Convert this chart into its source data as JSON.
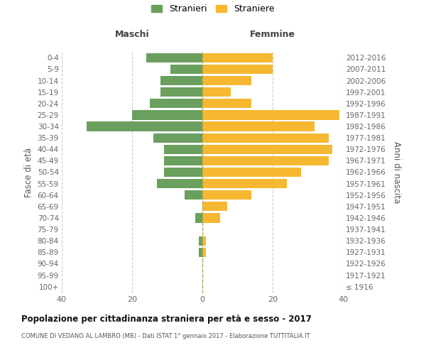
{
  "age_groups": [
    "100+",
    "95-99",
    "90-94",
    "85-89",
    "80-84",
    "75-79",
    "70-74",
    "65-69",
    "60-64",
    "55-59",
    "50-54",
    "45-49",
    "40-44",
    "35-39",
    "30-34",
    "25-29",
    "20-24",
    "15-19",
    "10-14",
    "5-9",
    "0-4"
  ],
  "birth_years": [
    "≤ 1916",
    "1917-1921",
    "1922-1926",
    "1927-1931",
    "1932-1936",
    "1937-1941",
    "1942-1946",
    "1947-1951",
    "1952-1956",
    "1957-1961",
    "1962-1966",
    "1967-1971",
    "1972-1976",
    "1977-1981",
    "1982-1986",
    "1987-1991",
    "1992-1996",
    "1997-2001",
    "2002-2006",
    "2007-2011",
    "2012-2016"
  ],
  "maschi": [
    0,
    0,
    0,
    1,
    1,
    0,
    2,
    0,
    5,
    13,
    11,
    11,
    11,
    14,
    33,
    20,
    15,
    12,
    12,
    9,
    16
  ],
  "femmine": [
    0,
    0,
    0,
    1,
    1,
    0,
    5,
    7,
    14,
    24,
    28,
    36,
    37,
    36,
    32,
    39,
    14,
    8,
    14,
    20,
    20
  ],
  "maschi_color": "#6a9f5e",
  "femmine_color": "#f5b830",
  "background_color": "#ffffff",
  "grid_color": "#cccccc",
  "title": "Popolazione per cittadinanza straniera per età e sesso - 2017",
  "subtitle": "COMUNE DI VEDANO AL LAMBRO (MB) - Dati ISTAT 1° gennaio 2017 - Elaborazione TUTTITALIA.IT",
  "ylabel_left": "Fasce di età",
  "ylabel_right": "Anni di nascita",
  "xlim": 40,
  "legend_stranieri": "Stranieri",
  "legend_straniere": "Straniere",
  "maschi_label": "Maschi",
  "femmine_label": "Femmine"
}
